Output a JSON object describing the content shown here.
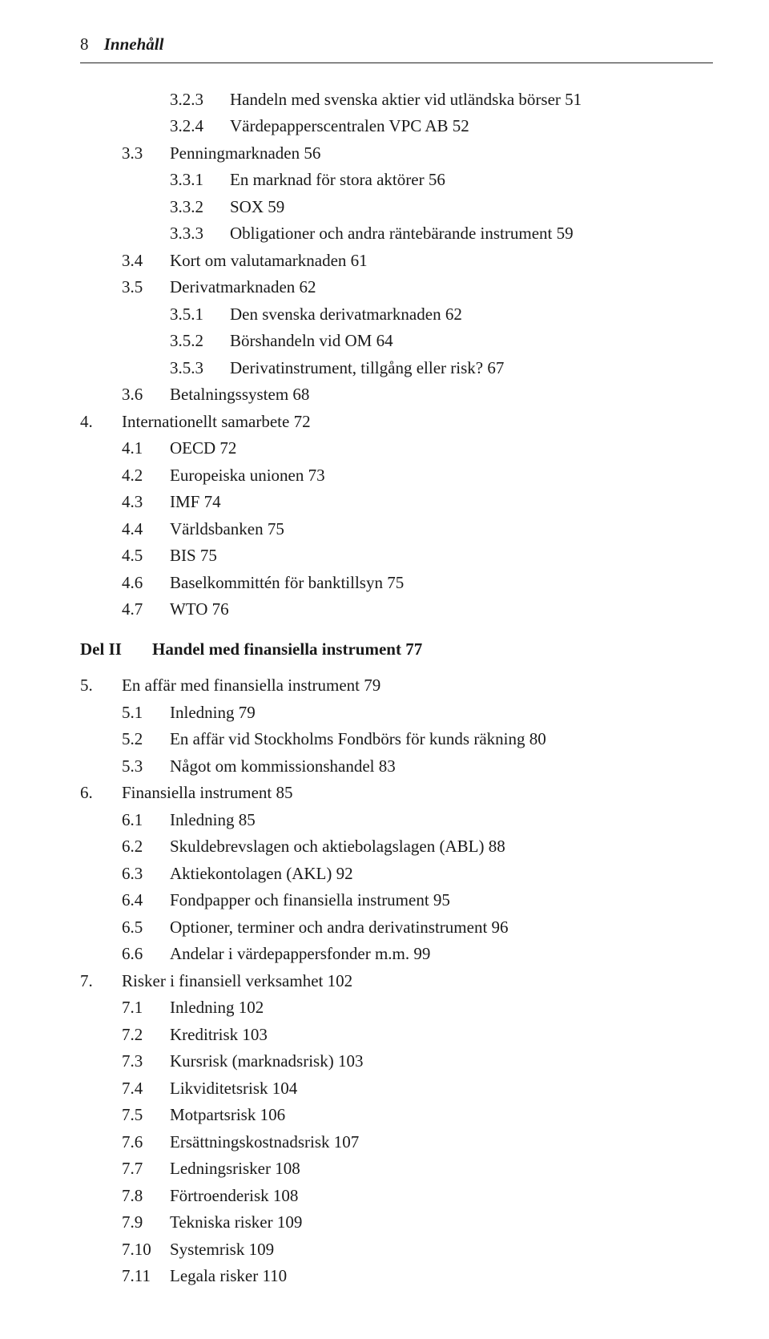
{
  "header": {
    "page_number": "8",
    "title": "Innehåll"
  },
  "toc": [
    {
      "level": 2,
      "num": "3.2.3",
      "text": "Handeln med svenska aktier vid utländska börser   51"
    },
    {
      "level": 2,
      "num": "3.2.4",
      "text": "Värdepapperscentralen VPC AB   52"
    },
    {
      "level": 1,
      "num": "3.3",
      "text": "Penningmarknaden   56"
    },
    {
      "level": 2,
      "num": "3.3.1",
      "text": "En marknad för stora aktörer   56"
    },
    {
      "level": 2,
      "num": "3.3.2",
      "text": "SOX   59"
    },
    {
      "level": 2,
      "num": "3.3.3",
      "text": "Obligationer och andra räntebärande instrument   59"
    },
    {
      "level": 1,
      "num": "3.4",
      "text": "Kort om valutamarknaden   61"
    },
    {
      "level": 1,
      "num": "3.5",
      "text": "Derivatmarknaden   62"
    },
    {
      "level": 2,
      "num": "3.5.1",
      "text": "Den svenska derivatmarknaden   62"
    },
    {
      "level": 2,
      "num": "3.5.2",
      "text": "Börshandeln vid OM   64"
    },
    {
      "level": 2,
      "num": "3.5.3",
      "text": "Derivatinstrument, tillgång eller risk?   67"
    },
    {
      "level": 1,
      "num": "3.6",
      "text": "Betalningssystem   68"
    },
    {
      "level": 0,
      "num": "4.",
      "text": "Internationellt samarbete   72"
    },
    {
      "level": 1,
      "num": "4.1",
      "text": "OECD   72"
    },
    {
      "level": 1,
      "num": "4.2",
      "text": "Europeiska unionen   73"
    },
    {
      "level": 1,
      "num": "4.3",
      "text": "IMF   74"
    },
    {
      "level": 1,
      "num": "4.4",
      "text": "Världsbanken   75"
    },
    {
      "level": 1,
      "num": "4.5",
      "text": "BIS   75"
    },
    {
      "level": 1,
      "num": "4.6",
      "text": "Baselkommittén för banktillsyn   75"
    },
    {
      "level": 1,
      "num": "4.7",
      "text": "WTO   76"
    }
  ],
  "part": {
    "label": "Del II",
    "title": "Handel med finansiella instrument   77"
  },
  "toc2": [
    {
      "level": 0,
      "num": "5.",
      "text": "En affär med finansiella instrument   79"
    },
    {
      "level": 1,
      "num": "5.1",
      "text": "Inledning   79"
    },
    {
      "level": 1,
      "num": "5.2",
      "text": "En affär vid Stockholms Fondbörs för kunds räkning   80"
    },
    {
      "level": 1,
      "num": "5.3",
      "text": "Något om kommissionshandel   83"
    },
    {
      "level": 0,
      "num": "6.",
      "text": "Finansiella instrument   85"
    },
    {
      "level": 1,
      "num": "6.1",
      "text": "Inledning   85"
    },
    {
      "level": 1,
      "num": "6.2",
      "text": "Skuldebrevslagen och aktiebolagslagen (ABL)   88"
    },
    {
      "level": 1,
      "num": "6.3",
      "text": "Aktiekontolagen (AKL)   92"
    },
    {
      "level": 1,
      "num": "6.4",
      "text": "Fondpapper och finansiella instrument   95"
    },
    {
      "level": 1,
      "num": "6.5",
      "text": "Optioner, terminer och andra derivatinstrument   96"
    },
    {
      "level": 1,
      "num": "6.6",
      "text": "Andelar i värdepappersfonder m.m.   99"
    },
    {
      "level": 0,
      "num": "7.",
      "text": "Risker i finansiell verksamhet   102"
    },
    {
      "level": 1,
      "num": "7.1",
      "text": "Inledning   102"
    },
    {
      "level": 1,
      "num": "7.2",
      "text": "Kreditrisk   103"
    },
    {
      "level": 1,
      "num": "7.3",
      "text": "Kursrisk (marknadsrisk)   103"
    },
    {
      "level": 1,
      "num": "7.4",
      "text": "Likviditetsrisk   104"
    },
    {
      "level": 1,
      "num": "7.5",
      "text": "Motpartsrisk   106"
    },
    {
      "level": 1,
      "num": "7.6",
      "text": "Ersättningskostnadsrisk   107"
    },
    {
      "level": 1,
      "num": "7.7",
      "text": "Ledningsrisker   108"
    },
    {
      "level": 1,
      "num": "7.8",
      "text": "Förtroenderisk   108"
    },
    {
      "level": 1,
      "num": "7.9",
      "text": "Tekniska risker   109"
    },
    {
      "level": 1,
      "num": "7.10",
      "text": "Systemrisk   109"
    },
    {
      "level": 1,
      "num": "7.11",
      "text": "Legala risker   110"
    }
  ]
}
